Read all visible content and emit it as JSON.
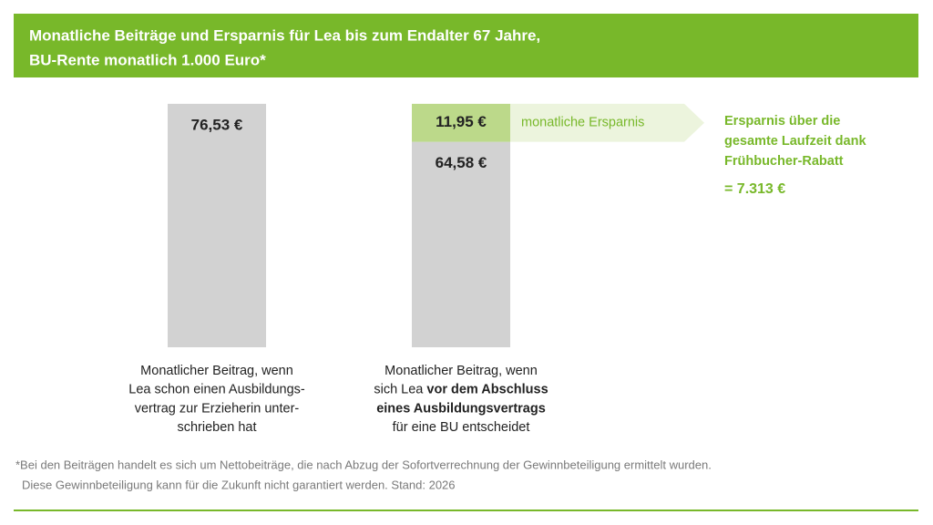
{
  "chart_data": {
    "type": "stacked-bar",
    "title": [
      "Monatliche Beiträge und Ersparnis für Lea bis zum Endalter 67 Jahre,",
      "BU-Rente monatlich 1.000 Euro*"
    ],
    "bars": [
      {
        "segments": [
          {
            "value": 76.53,
            "label": "76,53 €",
            "color": "#d2d2d2"
          }
        ],
        "caption": [
          [
            {
              "text": "Monatlicher Beitrag, wenn",
              "bold": false
            }
          ],
          [
            {
              "text": "Lea schon einen Ausbildungs-",
              "bold": false
            }
          ],
          [
            {
              "text": "vertrag zur Erzieherin unter-",
              "bold": false
            }
          ],
          [
            {
              "text": "schrieben hat",
              "bold": false
            }
          ]
        ]
      },
      {
        "segments": [
          {
            "value": 64.58,
            "label": "64,58 €",
            "color": "#d2d2d2"
          },
          {
            "value": 11.95,
            "label": "11,95 €",
            "color": "#bcd98a",
            "name": "monatliche Ersparnis"
          }
        ],
        "caption": [
          [
            {
              "text": "Monatlicher Beitrag, wenn",
              "bold": false
            }
          ],
          [
            {
              "text": "sich Lea ",
              "bold": false
            },
            {
              "text": "vor dem Abschluss",
              "bold": true
            }
          ],
          [
            {
              "text": "eines Ausbildungsvertrags",
              "bold": true
            }
          ],
          [
            {
              "text": "für eine BU entscheidet",
              "bold": false
            }
          ]
        ]
      }
    ],
    "annotation": [
      "Ersparnis über die",
      "gesamte Laufzeit dank",
      "Frühbucher-Rabatt"
    ],
    "total_saving": "= 7.313 €",
    "accent_color": "#78b82a",
    "footnote": [
      "*Bei den Beiträgen handelt es sich um Nettobeiträge, die nach Abzug der Sofortverrechnung der Gewinnbeteiligung ermittelt wurden.",
      "Diese Gewinnbeteiligung kann für die Zukunft nicht garantiert werden. Stand: 2026"
    ]
  }
}
